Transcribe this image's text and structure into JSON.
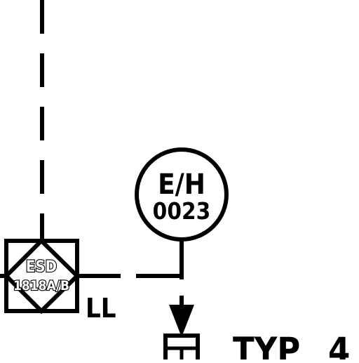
{
  "colors": {
    "line": "#000000",
    "background": "#ffffff"
  },
  "instrument_bubble": {
    "tag_prefix": "E/H",
    "tag_number": "0023"
  },
  "esd_symbol": {
    "line1": "ESD",
    "line2": "1818A/B"
  },
  "alarm_label": "LL",
  "note_label": "TYP",
  "note_number": "4",
  "icons": [
    "arrow-down-icon",
    "valve-actuator-icon"
  ]
}
